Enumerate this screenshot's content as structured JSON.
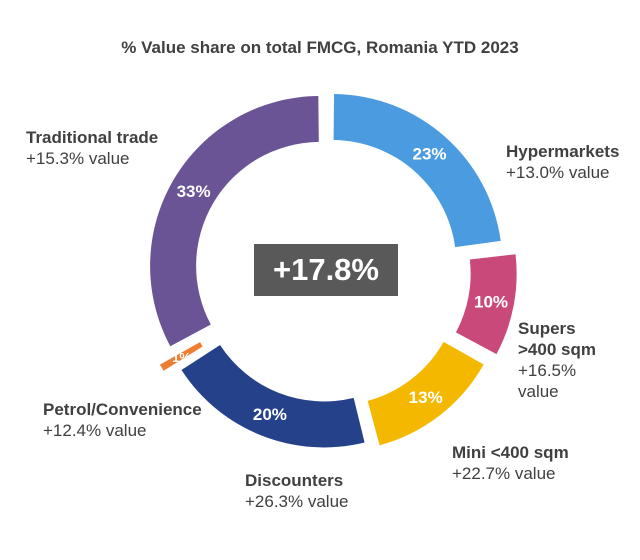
{
  "chart_data": {
    "type": "pie",
    "title": "% Value share on total FMCG, Romania YTD 2023",
    "center_label": "+17.8%",
    "slices": [
      {
        "name": "Hypermarkets",
        "value": 23,
        "label": "23%",
        "growth": "+13.0% value",
        "color": "#4a9be0"
      },
      {
        "name_lines": [
          "Supers",
          ">400 sqm"
        ],
        "value": 10,
        "label": "10%",
        "growth_lines": [
          "+16.5%",
          "value"
        ],
        "color": "#c94a7a"
      },
      {
        "name": "Mini <400 sqm",
        "value": 13,
        "label": "13%",
        "growth": "+22.7% value",
        "color": "#f5b800"
      },
      {
        "name": "Discounters",
        "value": 20,
        "label": "20%",
        "growth": "+26.3% value",
        "color": "#24418a"
      },
      {
        "name": "Petrol/Convenience",
        "value": 1,
        "label": "1%",
        "growth": "+12.4%  value",
        "color": "#ed7d31"
      },
      {
        "name": "Traditional trade",
        "value": 33,
        "label": "33%",
        "growth": "+15.3% value",
        "color": "#6a5496"
      }
    ]
  }
}
